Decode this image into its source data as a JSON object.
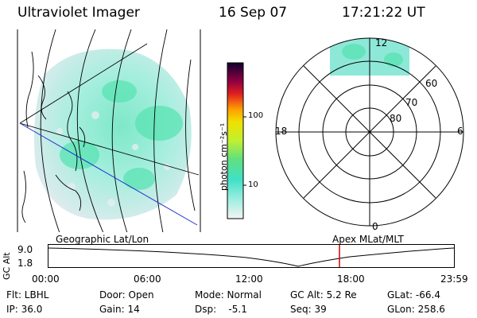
{
  "header": {
    "instrument": "Ultraviolet Imager",
    "date": "16 Sep 07",
    "time": "17:21:22 UT"
  },
  "colorbar": {
    "unit_label": "photon cm⁻²s⁻¹",
    "ticks": [
      "100",
      "10"
    ]
  },
  "polar_plot": {
    "mlt_labels": [
      "12",
      "18",
      "6",
      "0"
    ],
    "lat_labels": [
      "60",
      "70",
      "80"
    ]
  },
  "timeline": {
    "left_title": "Geographic Lat/Lon",
    "right_title": "Apex MLat/MLT",
    "axis_label": "GC Alt",
    "y_ticks": [
      "9.0",
      "1.8"
    ],
    "x_ticks": [
      "00:00",
      "06:00",
      "12:00",
      "18:00",
      "23:59"
    ],
    "marker_color": "#d40000"
  },
  "status": {
    "flt": "Flt: LBHL",
    "ip": "IP: 36.0",
    "door": "Door: Open",
    "gain": "Gain: 14",
    "mode": "Mode: Normal",
    "dsp": "Dsp:    -5.1",
    "gcalt": "GC Alt: 5.2 Re",
    "seq": "Seq: 39",
    "glat": "GLat: -66.4",
    "glon": "GLon: 258.6"
  }
}
